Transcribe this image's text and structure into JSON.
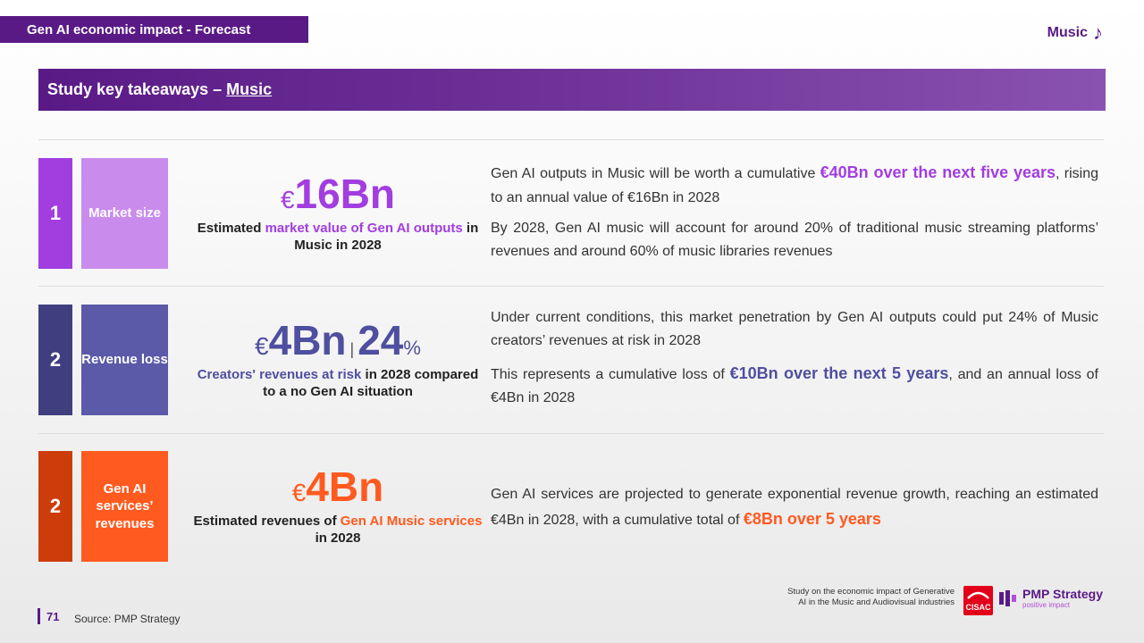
{
  "header": {
    "tag": "Gen AI economic impact - Forecast",
    "section": "Music",
    "section_icon": "music-note-icon"
  },
  "banner": {
    "prefix": "Study key takeaways – ",
    "highlight": "Music"
  },
  "rows": [
    {
      "number": "1",
      "label": "Market size",
      "color_dark": "#a23de0",
      "color_light": "#c98bec",
      "metric": {
        "currency": "€",
        "value": "16Bn"
      },
      "desc": {
        "a": "Estimated ",
        "b": "market value of Gen AI outputs",
        "c": " in Music in 2028"
      },
      "p1": {
        "a": "Gen AI outputs in Music will be worth a cumulative ",
        "b": "€40Bn over the next five years",
        "c": ", rising to an annual value of €16Bn in 2028"
      },
      "p2": "By 2028, Gen AI music will account for around 20% of traditional music streaming platforms’ revenues and around 60% of music libraries revenues"
    },
    {
      "number": "2",
      "label": "Revenue loss",
      "color_dark": "#3f3f80",
      "color_light": "#5a5aa8",
      "metric": {
        "currency": "€",
        "value": "4Bn",
        "separator": "|",
        "value2": "24",
        "unit2": "%"
      },
      "desc": {
        "a": "Creators' revenues at risk",
        "b": " in 2028 compared to a no Gen AI situation"
      },
      "p1": "Under current conditions, this market penetration by Gen AI outputs could put 24% of Music creators’ revenues at risk  in 2028",
      "p2": {
        "a": "This represents a cumulative loss of ",
        "b": "€10Bn over the next 5 years",
        "c": ", and an annual loss of €4Bn in 2028"
      }
    },
    {
      "number": "2",
      "label": "Gen AI services’ revenues",
      "color_dark": "#cc3d0a",
      "color_light": "#ff5a1f",
      "metric": {
        "currency": "€",
        "value": "4Bn"
      },
      "desc": {
        "a": "Estimated revenues of ",
        "b": "Gen AI Music services",
        "c": " in 2028"
      },
      "p1": {
        "a": "Gen AI services are projected to generate exponential revenue growth, reaching an estimated  €4Bn in 2028, with a cumulative total of ",
        "b": "€8Bn over 5 years"
      }
    }
  ],
  "footer": {
    "page": "71",
    "source": "Source:  PMP Strategy",
    "study_text": "Study on the economic impact of Generative AI in the Music and Audiovisual industries",
    "cisac_logo": "CISAC",
    "pmp_name": "PMP Strategy",
    "pmp_tagline": "positive impact"
  }
}
